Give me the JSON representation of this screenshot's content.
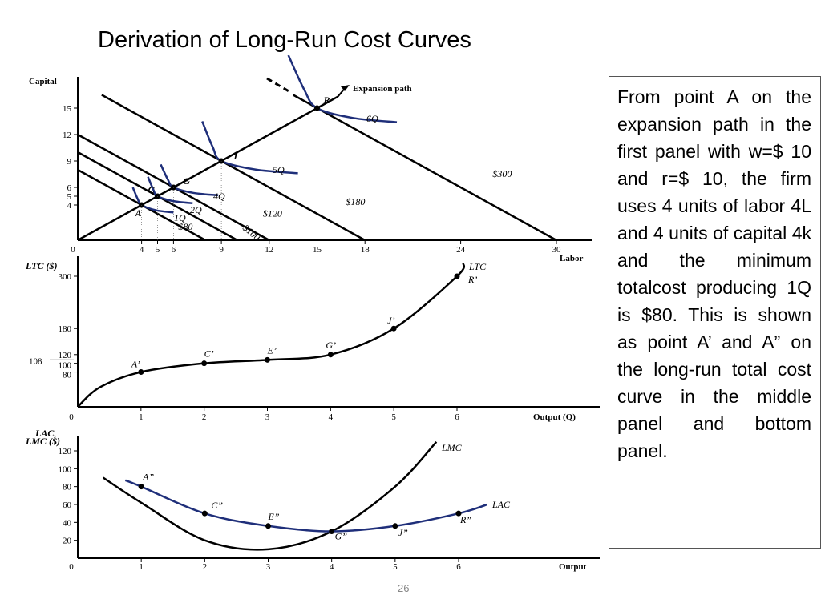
{
  "slide": {
    "title": "Derivation of Long-Run Cost Curves",
    "page_number": "26",
    "description": "From point A on the expansion path in the first panel with w=$ 10 and r=$ 10, the firm uses 4 units of labor 4L and 4 units of capital 4k and the minimum totalcost producing 1Q is $80. This is shown as point A’ and A” on the long-run total cost curve in the middle panel and bottom panel."
  },
  "colors": {
    "isoquant": "#1f2f7a",
    "lac": "#1f2f7a",
    "lines": "#000000"
  },
  "chart_data": [
    {
      "type": "line",
      "panel": "isoquant-isocost",
      "xlabel": "Labor",
      "ylabel": "Capital",
      "xlim": [
        0,
        32
      ],
      "ylim": [
        0,
        17
      ],
      "x_ticks": [
        0,
        4,
        5,
        6,
        9,
        12,
        15,
        18,
        24,
        30
      ],
      "y_ticks": [
        4,
        5,
        6,
        9,
        12,
        15
      ],
      "isocost_lines": [
        {
          "name": "$80",
          "x_intercept": 8,
          "y_intercept": 8
        },
        {
          "name": "$100",
          "x_intercept": 10,
          "y_intercept": 10
        },
        {
          "name": "$120",
          "x_intercept": 12,
          "y_intercept": 12
        },
        {
          "name": "$180",
          "x_intercept": 18,
          "y_intercept": 18
        },
        {
          "name": "$300",
          "x_intercept": 30,
          "y_intercept": 30
        }
      ],
      "isoquants": [
        {
          "name": "1Q",
          "tangent": [
            4,
            4
          ]
        },
        {
          "name": "2Q",
          "tangent": [
            5,
            5
          ]
        },
        {
          "name": "4Q",
          "tangent": [
            6,
            6
          ]
        },
        {
          "name": "5Q",
          "tangent": [
            9,
            9
          ]
        },
        {
          "name": "6Q",
          "tangent": [
            15,
            15
          ]
        }
      ],
      "points": [
        {
          "name": "A",
          "x": 4,
          "y": 4
        },
        {
          "name": "C",
          "x": 5,
          "y": 5
        },
        {
          "name": "G",
          "x": 6,
          "y": 6
        },
        {
          "name": "J",
          "x": 9,
          "y": 9
        },
        {
          "name": "R",
          "x": 15,
          "y": 15
        }
      ],
      "annotations": [
        "Expansion path"
      ]
    },
    {
      "type": "line",
      "panel": "long-run-total-cost",
      "xlabel": "Output (Q)",
      "ylabel": "LTC ($)",
      "series_label": "LTC",
      "xlim": [
        0,
        6.8
      ],
      "ylim": [
        0,
        320
      ],
      "x_ticks": [
        0,
        1,
        2,
        3,
        4,
        5,
        6
      ],
      "y_ticks": [
        80,
        100,
        120,
        180,
        300
      ],
      "y_side_label": "108",
      "points": [
        {
          "name": "A’",
          "x": 1,
          "y": 80
        },
        {
          "name": "C’",
          "x": 2,
          "y": 100
        },
        {
          "name": "E’",
          "x": 3,
          "y": 108
        },
        {
          "name": "G’",
          "x": 4,
          "y": 120
        },
        {
          "name": "J’",
          "x": 5,
          "y": 180
        },
        {
          "name": "R’",
          "x": 6,
          "y": 300
        }
      ]
    },
    {
      "type": "line",
      "panel": "long-run-average-and-marginal-cost",
      "xlabel": "Output",
      "ylabel": [
        "LAC,",
        "LMC ($)"
      ],
      "xlim": [
        0,
        7.2
      ],
      "ylim": [
        0,
        130
      ],
      "x_ticks": [
        0,
        1,
        2,
        3,
        4,
        5,
        6
      ],
      "y_ticks": [
        20,
        40,
        60,
        80,
        100,
        120
      ],
      "series": [
        {
          "name": "LAC",
          "points": [
            {
              "name": "A”",
              "x": 1,
              "y": 80
            },
            {
              "name": "C”",
              "x": 2,
              "y": 50
            },
            {
              "name": "E”",
              "x": 3,
              "y": 36
            },
            {
              "name": "G”",
              "x": 4,
              "y": 30
            },
            {
              "name": "J”",
              "x": 5,
              "y": 36
            },
            {
              "name": "R”",
              "x": 6,
              "y": 50
            }
          ]
        },
        {
          "name": "LMC",
          "points": [
            {
              "x": 0.4,
              "y": 90
            },
            {
              "x": 1,
              "y": 62
            },
            {
              "x": 2,
              "y": 20
            },
            {
              "x": 3,
              "y": 10
            },
            {
              "x": 4,
              "y": 30
            },
            {
              "x": 5,
              "y": 80
            },
            {
              "x": 5.65,
              "y": 130
            }
          ]
        }
      ]
    }
  ]
}
